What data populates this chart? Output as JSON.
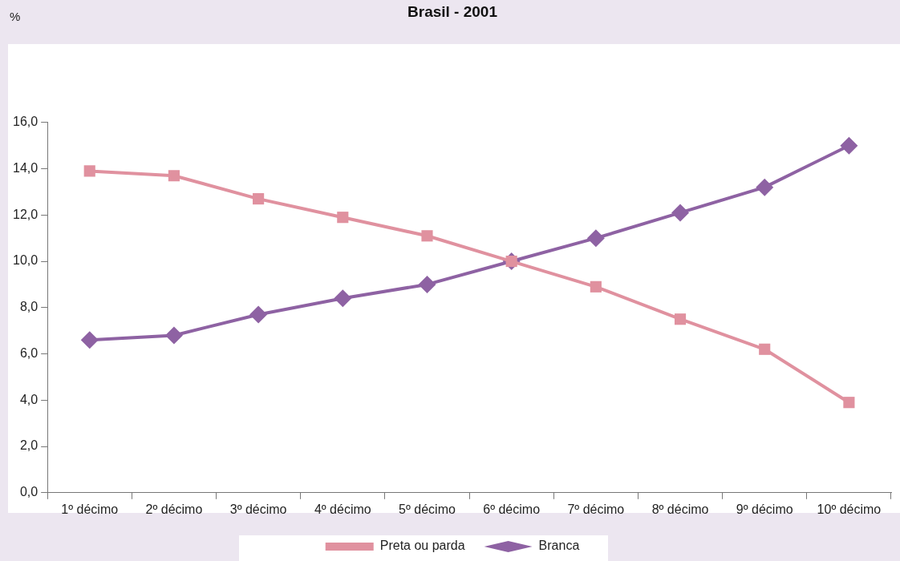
{
  "chart_data": {
    "type": "line",
    "title": "Brasil - 2001",
    "annotations": [
      "%"
    ],
    "categories": [
      "1º décimo",
      "2º décimo",
      "3º décimo",
      "4º décimo",
      "5º décimo",
      "6º décimo",
      "7º décimo",
      "8º décimo",
      "9º décimo",
      "10º décimo"
    ],
    "series": [
      {
        "name": "Branca",
        "color": "#8e62a3",
        "marker": "diamond",
        "values": [
          6.6,
          6.8,
          7.7,
          8.4,
          9.0,
          10.0,
          11.0,
          12.1,
          13.2,
          15.0
        ]
      },
      {
        "name": "Preta ou parda",
        "color": "#e0919f",
        "marker": "square",
        "values": [
          13.9,
          13.7,
          12.7,
          11.9,
          11.1,
          10.0,
          8.9,
          7.5,
          6.2,
          3.9
        ]
      }
    ],
    "ylim": [
      0,
      16
    ],
    "yticks": [
      {
        "value": 0,
        "label": "0,0"
      },
      {
        "value": 2,
        "label": "2,0"
      },
      {
        "value": 4,
        "label": "4,0"
      },
      {
        "value": 6,
        "label": "6,0"
      },
      {
        "value": 8,
        "label": "8,0"
      },
      {
        "value": 10,
        "label": "10,0"
      },
      {
        "value": 12,
        "label": "12,0"
      },
      {
        "value": 14,
        "label": "14,0"
      },
      {
        "value": 16,
        "label": "16,0"
      }
    ],
    "grid": false,
    "legend": "bottom",
    "line_style": "solid"
  }
}
